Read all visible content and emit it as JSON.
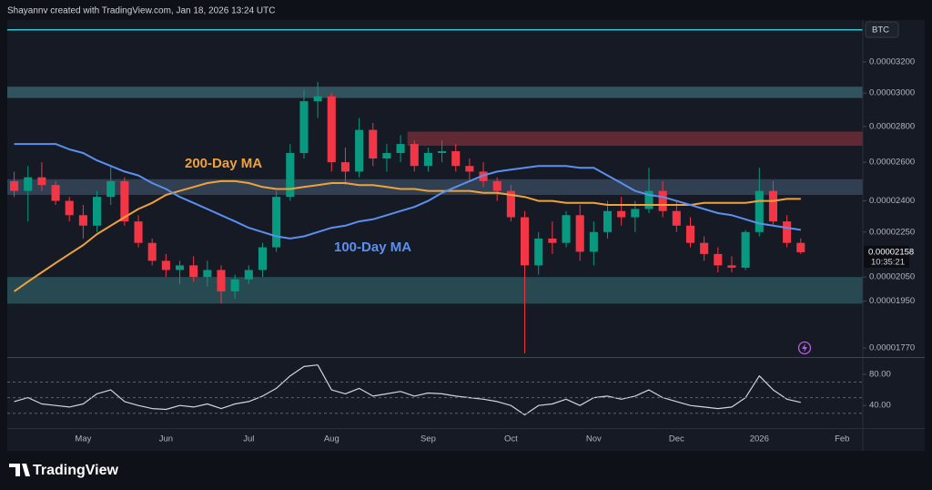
{
  "chart_data": {
    "type": "candlestick",
    "title": "Shayannv created with TradingView.com, Jan 18, 2026 13:24 UTC",
    "symbol": "BTC",
    "log_scale": true,
    "categories": [
      null,
      null,
      null,
      null,
      null,
      "May",
      null,
      null,
      null,
      null,
      null,
      "Jun",
      null,
      null,
      null,
      null,
      null,
      "Jul",
      null,
      null,
      null,
      null,
      null,
      "Aug",
      null,
      null,
      null,
      null,
      null,
      null,
      "Sep",
      null,
      null,
      null,
      null,
      null,
      "Oct",
      null,
      null,
      null,
      null,
      null,
      "Nov",
      null,
      null,
      null,
      null,
      null,
      "Dec",
      null,
      null,
      null,
      null,
      null,
      "2026",
      null,
      null,
      null,
      null,
      null,
      "Feb",
      null
    ],
    "open": [
      2.5e-05,
      2.45e-05,
      2.52e-05,
      2.48e-05,
      2.4e-05,
      2.33e-05,
      2.28e-05,
      2.42e-05,
      2.5e-05,
      2.3e-05,
      2.2e-05,
      2.12e-05,
      2.08e-05,
      2.1e-05,
      2.05e-05,
      2.08e-05,
      1.99e-05,
      2.04e-05,
      2.08e-05,
      2.18e-05,
      2.42e-05,
      2.65e-05,
      2.95e-05,
      2.98e-05,
      2.6e-05,
      2.55e-05,
      2.78e-05,
      2.62e-05,
      2.65e-05,
      2.7e-05,
      2.58e-05,
      2.65e-05,
      2.66e-05,
      2.58e-05,
      2.55e-05,
      2.5e-05,
      2.45e-05,
      2.32e-05,
      2.1e-05,
      2.22e-05,
      2.2e-05,
      2.33e-05,
      2.16e-05,
      2.25e-05,
      2.35e-05,
      2.32e-05,
      2.36e-05,
      2.45e-05,
      2.35e-05,
      2.28e-05,
      2.2e-05,
      2.15e-05,
      2.1e-05,
      2.09e-05,
      2.25e-05,
      2.45e-05,
      2.3e-05,
      2.2e-05,
      null,
      null,
      null,
      null
    ],
    "high": [
      2.55e-05,
      2.58e-05,
      2.6e-05,
      2.5e-05,
      2.42e-05,
      2.38e-05,
      2.45e-05,
      2.58e-05,
      2.52e-05,
      2.33e-05,
      2.22e-05,
      2.15e-05,
      2.12e-05,
      2.14e-05,
      2.12e-05,
      2.1e-05,
      2.06e-05,
      2.1e-05,
      2.2e-05,
      2.45e-05,
      2.7e-05,
      3.02e-05,
      3.07e-05,
      3e-05,
      2.68e-05,
      2.85e-05,
      2.82e-05,
      2.7e-05,
      2.75e-05,
      2.72e-05,
      2.68e-05,
      2.72e-05,
      2.7e-05,
      2.62e-05,
      2.6e-05,
      2.52e-05,
      2.48e-05,
      2.35e-05,
      2.25e-05,
      2.3e-05,
      2.35e-05,
      2.38e-05,
      2.3e-05,
      2.4e-05,
      2.42e-05,
      2.4e-05,
      2.57e-05,
      2.5e-05,
      2.4e-05,
      2.32e-05,
      2.23e-05,
      2.18e-05,
      2.14e-05,
      2.26e-05,
      2.57e-05,
      2.5e-05,
      2.33e-05,
      2.22e-05,
      null,
      null,
      null,
      null
    ],
    "low": [
      2.42e-05,
      2.3e-05,
      2.45e-05,
      2.38e-05,
      2.3e-05,
      2.22e-05,
      2.25e-05,
      2.38e-05,
      2.28e-05,
      2.18e-05,
      2.1e-05,
      2.05e-05,
      2.02e-05,
      2.03e-05,
      2.01e-05,
      1.94e-05,
      1.96e-05,
      2.02e-05,
      2.05e-05,
      2.16e-05,
      2.4e-05,
      2.62e-05,
      2.85e-05,
      2.55e-05,
      2.48e-05,
      2.52e-05,
      2.58e-05,
      2.55e-05,
      2.6e-05,
      2.55e-05,
      2.55e-05,
      2.6e-05,
      2.55e-05,
      2.5e-05,
      2.47e-05,
      2.4e-05,
      2.3e-05,
      1.75e-05,
      2.06e-05,
      2.15e-05,
      2.18e-05,
      2.12e-05,
      2.1e-05,
      2.22e-05,
      2.28e-05,
      2.25e-05,
      2.34e-05,
      2.32e-05,
      2.25e-05,
      2.18e-05,
      2.12e-05,
      2.07e-05,
      2.07e-05,
      2.08e-05,
      2.23e-05,
      2.28e-05,
      2.18e-05,
      2.15e-05,
      null,
      null,
      null,
      null
    ],
    "close": [
      2.45e-05,
      2.52e-05,
      2.48e-05,
      2.4e-05,
      2.33e-05,
      2.28e-05,
      2.42e-05,
      2.5e-05,
      2.3e-05,
      2.2e-05,
      2.12e-05,
      2.08e-05,
      2.1e-05,
      2.05e-05,
      2.08e-05,
      1.99e-05,
      2.04e-05,
      2.08e-05,
      2.18e-05,
      2.42e-05,
      2.65e-05,
      2.95e-05,
      2.98e-05,
      2.6e-05,
      2.55e-05,
      2.78e-05,
      2.62e-05,
      2.65e-05,
      2.7e-05,
      2.58e-05,
      2.65e-05,
      2.66e-05,
      2.58e-05,
      2.55e-05,
      2.5e-05,
      2.45e-05,
      2.32e-05,
      2.1e-05,
      2.22e-05,
      2.2e-05,
      2.33e-05,
      2.16e-05,
      2.25e-05,
      2.35e-05,
      2.32e-05,
      2.36e-05,
      2.45e-05,
      2.35e-05,
      2.28e-05,
      2.2e-05,
      2.15e-05,
      2.1e-05,
      2.09e-05,
      2.25e-05,
      2.45e-05,
      2.3e-05,
      2.2e-05,
      2.158e-05,
      null,
      null,
      null,
      null
    ],
    "up_color": "#089981",
    "down_color": "#f23645",
    "series": [
      {
        "name": "200-Day MA",
        "color": "#f0a23a",
        "values": [
          1.99e-05,
          2.03e-05,
          2.07e-05,
          2.11e-05,
          2.15e-05,
          2.19e-05,
          2.24e-05,
          2.28e-05,
          2.32e-05,
          2.36e-05,
          2.39e-05,
          2.43e-05,
          2.45e-05,
          2.47e-05,
          2.49e-05,
          2.5e-05,
          2.5e-05,
          2.49e-05,
          2.47e-05,
          2.46e-05,
          2.46e-05,
          2.47e-05,
          2.48e-05,
          2.49e-05,
          2.49e-05,
          2.48e-05,
          2.48e-05,
          2.47e-05,
          2.46e-05,
          2.46e-05,
          2.45e-05,
          2.45e-05,
          2.45e-05,
          2.45e-05,
          2.44e-05,
          2.44e-05,
          2.43e-05,
          2.42e-05,
          2.4e-05,
          2.4e-05,
          2.39e-05,
          2.39e-05,
          2.39e-05,
          2.38e-05,
          2.38e-05,
          2.38e-05,
          2.38e-05,
          2.38e-05,
          2.38e-05,
          2.38e-05,
          2.39e-05,
          2.39e-05,
          2.39e-05,
          2.39e-05,
          2.4e-05,
          2.4e-05,
          2.41e-05,
          2.41e-05,
          null,
          null,
          null,
          null
        ]
      },
      {
        "name": "100-Day MA",
        "color": "#5b8ff0",
        "values": [
          2.7e-05,
          2.7e-05,
          2.7e-05,
          2.7e-05,
          2.67e-05,
          2.65e-05,
          2.61e-05,
          2.58e-05,
          2.55e-05,
          2.53e-05,
          2.49e-05,
          2.46e-05,
          2.42e-05,
          2.39e-05,
          2.36e-05,
          2.33e-05,
          2.3e-05,
          2.27e-05,
          2.25e-05,
          2.23e-05,
          2.22e-05,
          2.23e-05,
          2.25e-05,
          2.27e-05,
          2.28e-05,
          2.3e-05,
          2.31e-05,
          2.33e-05,
          2.35e-05,
          2.37e-05,
          2.4e-05,
          2.44e-05,
          2.47e-05,
          2.5e-05,
          2.53e-05,
          2.55e-05,
          2.56e-05,
          2.57e-05,
          2.58e-05,
          2.58e-05,
          2.58e-05,
          2.57e-05,
          2.57e-05,
          2.53e-05,
          2.49e-05,
          2.45e-05,
          2.43e-05,
          2.42e-05,
          2.4e-05,
          2.38e-05,
          2.36e-05,
          2.34e-05,
          2.33e-05,
          2.31e-05,
          2.29e-05,
          2.28e-05,
          2.27e-05,
          2.26e-05,
          null,
          null,
          null,
          null
        ]
      }
    ],
    "ylim": [
      1.737e-05,
      3.49e-05
    ],
    "yticks": [
      {
        "value": 3.2e-05,
        "label": "0.00003200"
      },
      {
        "value": 3e-05,
        "label": "0.00003000"
      },
      {
        "value": 2.8e-05,
        "label": "0.00002800"
      },
      {
        "value": 2.6e-05,
        "label": "0.00002600"
      },
      {
        "value": 2.4e-05,
        "label": "0.00002400"
      },
      {
        "value": 2.25e-05,
        "label": "0.00002250"
      },
      {
        "value": 2.05e-05,
        "label": "0.00002050"
      },
      {
        "value": 1.95e-05,
        "label": "0.00001950"
      },
      {
        "value": 1.77e-05,
        "label": "0.00001770"
      }
    ],
    "zones": [
      {
        "from": 2.97e-05,
        "to": 3.04e-05,
        "color": "#3b6770"
      },
      {
        "from": 2.69e-05,
        "to": 2.77e-05,
        "color": "#7a2f3a",
        "start": 29
      },
      {
        "from": 2.43e-05,
        "to": 2.51e-05,
        "color": "#3b4c62"
      },
      {
        "from": 1.94e-05,
        "to": 2.05e-05,
        "color": "#2d5a60"
      }
    ],
    "hlines": [
      {
        "value": 3.42e-05,
        "color": "#38c3d1"
      }
    ],
    "last_price_label": "0.00002158",
    "countdown": "10:35:21",
    "indicator": {
      "type": "line",
      "color": "#d1d4dc",
      "values": [
        45,
        50,
        42,
        40,
        38,
        42,
        55,
        60,
        45,
        40,
        36,
        35,
        40,
        38,
        42,
        36,
        42,
        45,
        52,
        62,
        78,
        90,
        92,
        60,
        55,
        62,
        52,
        55,
        58,
        52,
        56,
        55,
        52,
        50,
        48,
        45,
        40,
        28,
        40,
        42,
        48,
        40,
        50,
        52,
        48,
        52,
        60,
        50,
        45,
        40,
        38,
        36,
        38,
        50,
        78,
        60,
        48,
        44,
        null,
        null,
        null,
        null
      ],
      "ylim": [
        11,
        101
      ],
      "yticks": [
        {
          "value": 80,
          "label": "80.00"
        },
        {
          "value": 40,
          "label": "40.00"
        }
      ],
      "guide_lines": [
        70,
        50,
        30
      ]
    }
  },
  "footer": {
    "brand": "TradingView"
  }
}
